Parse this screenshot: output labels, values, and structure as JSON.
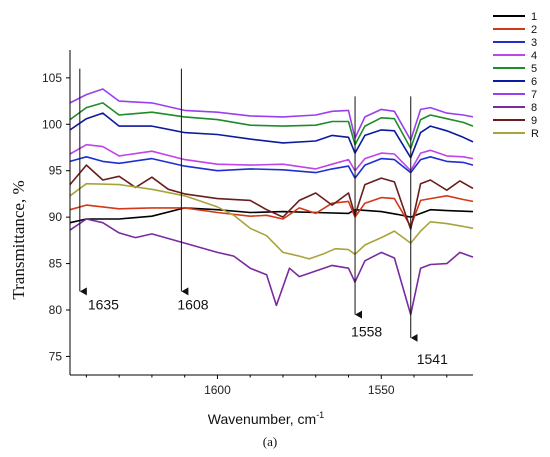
{
  "chart_data": {
    "type": "line",
    "xlabel": "Wavenumber, cm",
    "xlabel_sup": "-1",
    "ylabel": "Transmittance, %",
    "sublabel": "(a)",
    "xlim": [
      1645,
      1522
    ],
    "ylim": [
      73,
      108
    ],
    "x_ticks": [
      1600,
      1550
    ],
    "y_ticks": [
      75,
      80,
      85,
      90,
      95,
      100,
      105
    ],
    "x_reversed": true,
    "legend_position": "top-right",
    "annotations": [
      {
        "label": "1635",
        "x": 1642,
        "y_from": 106,
        "y_to": 82
      },
      {
        "label": "1608",
        "x": 1611,
        "y_from": 106,
        "y_to": 82
      },
      {
        "label": "1558",
        "x": 1558,
        "y_from": 103,
        "y_to": 79.5
      },
      {
        "label": "1541",
        "x": 1541,
        "y_from": 103,
        "y_to": 77
      }
    ],
    "series": [
      {
        "name": "1",
        "color": "#000000",
        "points": [
          [
            1645,
            89.4
          ],
          [
            1640,
            89.8
          ],
          [
            1630,
            89.8
          ],
          [
            1620,
            90.1
          ],
          [
            1610,
            91.0
          ],
          [
            1600,
            90.8
          ],
          [
            1590,
            90.5
          ],
          [
            1580,
            90.6
          ],
          [
            1570,
            90.5
          ],
          [
            1560,
            90.4
          ],
          [
            1558,
            90.8
          ],
          [
            1550,
            90.6
          ],
          [
            1545,
            90.3
          ],
          [
            1541,
            90.0
          ],
          [
            1535,
            90.8
          ],
          [
            1530,
            90.7
          ],
          [
            1522,
            90.6
          ]
        ]
      },
      {
        "name": "2",
        "color": "#d23a17",
        "points": [
          [
            1645,
            90.8
          ],
          [
            1640,
            91.3
          ],
          [
            1630,
            90.9
          ],
          [
            1620,
            91.0
          ],
          [
            1610,
            91.0
          ],
          [
            1600,
            90.5
          ],
          [
            1590,
            90.1
          ],
          [
            1585,
            90.2
          ],
          [
            1580,
            89.8
          ],
          [
            1575,
            91.0
          ],
          [
            1570,
            90.4
          ],
          [
            1565,
            91.5
          ],
          [
            1560,
            91.7
          ],
          [
            1558,
            90.0
          ],
          [
            1555,
            91.5
          ],
          [
            1550,
            92.1
          ],
          [
            1546,
            92.0
          ],
          [
            1541,
            89.0
          ],
          [
            1538,
            91.8
          ],
          [
            1535,
            92.0
          ],
          [
            1530,
            92.3
          ],
          [
            1525,
            91.9
          ],
          [
            1522,
            91.7
          ]
        ]
      },
      {
        "name": "3",
        "color": "#1e2fd0",
        "points": [
          [
            1645,
            96.0
          ],
          [
            1640,
            96.5
          ],
          [
            1635,
            96.0
          ],
          [
            1630,
            95.8
          ],
          [
            1620,
            96.3
          ],
          [
            1610,
            95.5
          ],
          [
            1600,
            95.0
          ],
          [
            1590,
            95.2
          ],
          [
            1580,
            95.1
          ],
          [
            1570,
            94.8
          ],
          [
            1565,
            95.2
          ],
          [
            1560,
            95.5
          ],
          [
            1558,
            94.2
          ],
          [
            1555,
            95.6
          ],
          [
            1550,
            96.3
          ],
          [
            1546,
            96.2
          ],
          [
            1541,
            94.8
          ],
          [
            1538,
            96.2
          ],
          [
            1535,
            96.5
          ],
          [
            1530,
            96.0
          ],
          [
            1525,
            95.9
          ],
          [
            1522,
            95.6
          ]
        ]
      },
      {
        "name": "4",
        "color": "#c044e8",
        "points": [
          [
            1645,
            96.8
          ],
          [
            1640,
            97.8
          ],
          [
            1635,
            97.6
          ],
          [
            1630,
            96.6
          ],
          [
            1620,
            97.1
          ],
          [
            1610,
            96.2
          ],
          [
            1600,
            95.7
          ],
          [
            1590,
            95.6
          ],
          [
            1580,
            95.7
          ],
          [
            1570,
            95.2
          ],
          [
            1565,
            95.7
          ],
          [
            1560,
            96.2
          ],
          [
            1558,
            95.0
          ],
          [
            1555,
            96.3
          ],
          [
            1550,
            96.9
          ],
          [
            1546,
            96.8
          ],
          [
            1541,
            95.0
          ],
          [
            1538,
            96.9
          ],
          [
            1535,
            97.2
          ],
          [
            1530,
            96.6
          ],
          [
            1525,
            96.5
          ],
          [
            1522,
            96.3
          ]
        ]
      },
      {
        "name": "5",
        "color": "#1e8c28",
        "points": [
          [
            1645,
            100.5
          ],
          [
            1640,
            101.8
          ],
          [
            1635,
            102.3
          ],
          [
            1630,
            101.0
          ],
          [
            1620,
            101.3
          ],
          [
            1610,
            100.8
          ],
          [
            1600,
            100.5
          ],
          [
            1590,
            99.9
          ],
          [
            1580,
            99.8
          ],
          [
            1570,
            99.9
          ],
          [
            1565,
            100.3
          ],
          [
            1560,
            100.3
          ],
          [
            1558,
            97.8
          ],
          [
            1555,
            99.8
          ],
          [
            1550,
            100.7
          ],
          [
            1546,
            100.6
          ],
          [
            1541,
            97.4
          ],
          [
            1538,
            100.5
          ],
          [
            1535,
            101.0
          ],
          [
            1530,
            100.6
          ],
          [
            1525,
            100.2
          ],
          [
            1522,
            99.8
          ]
        ]
      },
      {
        "name": "6",
        "color": "#0c1a9e",
        "points": [
          [
            1645,
            99.4
          ],
          [
            1640,
            100.6
          ],
          [
            1635,
            101.2
          ],
          [
            1630,
            99.8
          ],
          [
            1620,
            99.8
          ],
          [
            1610,
            99.1
          ],
          [
            1600,
            98.9
          ],
          [
            1590,
            98.4
          ],
          [
            1580,
            98.0
          ],
          [
            1570,
            98.2
          ],
          [
            1565,
            98.8
          ],
          [
            1560,
            98.6
          ],
          [
            1558,
            96.9
          ],
          [
            1555,
            98.8
          ],
          [
            1550,
            99.4
          ],
          [
            1546,
            99.3
          ],
          [
            1541,
            96.4
          ],
          [
            1538,
            99.1
          ],
          [
            1535,
            99.8
          ],
          [
            1530,
            99.3
          ],
          [
            1525,
            98.6
          ],
          [
            1522,
            98.1
          ]
        ]
      },
      {
        "name": "7",
        "color": "#9a3ff0",
        "points": [
          [
            1645,
            102.3
          ],
          [
            1640,
            103.2
          ],
          [
            1635,
            103.8
          ],
          [
            1630,
            102.5
          ],
          [
            1620,
            102.3
          ],
          [
            1610,
            101.5
          ],
          [
            1600,
            101.3
          ],
          [
            1590,
            100.9
          ],
          [
            1580,
            100.8
          ],
          [
            1570,
            101.0
          ],
          [
            1565,
            101.4
          ],
          [
            1560,
            101.5
          ],
          [
            1558,
            98.5
          ],
          [
            1555,
            100.8
          ],
          [
            1550,
            101.6
          ],
          [
            1546,
            101.4
          ],
          [
            1541,
            98.3
          ],
          [
            1538,
            101.6
          ],
          [
            1535,
            101.8
          ],
          [
            1530,
            101.2
          ],
          [
            1525,
            101.0
          ],
          [
            1522,
            100.8
          ]
        ]
      },
      {
        "name": "8",
        "color": "#7a2ba0",
        "points": [
          [
            1645,
            88.6
          ],
          [
            1640,
            89.8
          ],
          [
            1635,
            89.4
          ],
          [
            1630,
            88.3
          ],
          [
            1625,
            87.8
          ],
          [
            1620,
            88.2
          ],
          [
            1610,
            87.2
          ],
          [
            1600,
            86.2
          ],
          [
            1595,
            85.8
          ],
          [
            1590,
            84.5
          ],
          [
            1585,
            83.8
          ],
          [
            1582,
            80.5
          ],
          [
            1578,
            84.5
          ],
          [
            1575,
            83.6
          ],
          [
            1570,
            84.2
          ],
          [
            1565,
            84.8
          ],
          [
            1560,
            84.5
          ],
          [
            1558,
            83.0
          ],
          [
            1555,
            85.3
          ],
          [
            1550,
            86.2
          ],
          [
            1546,
            85.6
          ],
          [
            1541,
            79.5
          ],
          [
            1538,
            84.5
          ],
          [
            1535,
            84.9
          ],
          [
            1530,
            85.0
          ],
          [
            1526,
            86.2
          ],
          [
            1522,
            85.7
          ]
        ]
      },
      {
        "name": "9",
        "color": "#6b1d1d",
        "points": [
          [
            1645,
            93.5
          ],
          [
            1640,
            95.6
          ],
          [
            1635,
            94.0
          ],
          [
            1630,
            94.4
          ],
          [
            1625,
            93.2
          ],
          [
            1620,
            94.3
          ],
          [
            1615,
            93.0
          ],
          [
            1610,
            92.5
          ],
          [
            1600,
            92.0
          ],
          [
            1590,
            91.8
          ],
          [
            1585,
            90.8
          ],
          [
            1580,
            90.0
          ],
          [
            1575,
            91.8
          ],
          [
            1570,
            92.6
          ],
          [
            1565,
            91.3
          ],
          [
            1560,
            92.6
          ],
          [
            1558,
            90.2
          ],
          [
            1555,
            93.5
          ],
          [
            1550,
            94.2
          ],
          [
            1546,
            93.8
          ],
          [
            1541,
            88.7
          ],
          [
            1538,
            93.6
          ],
          [
            1535,
            94.0
          ],
          [
            1530,
            92.9
          ],
          [
            1526,
            93.9
          ],
          [
            1522,
            93.1
          ]
        ]
      },
      {
        "name": "R",
        "color": "#a8a43a",
        "points": [
          [
            1645,
            92.3
          ],
          [
            1640,
            93.6
          ],
          [
            1630,
            93.5
          ],
          [
            1620,
            93.0
          ],
          [
            1610,
            92.3
          ],
          [
            1600,
            91.1
          ],
          [
            1595,
            90.2
          ],
          [
            1590,
            88.8
          ],
          [
            1585,
            88.0
          ],
          [
            1580,
            86.2
          ],
          [
            1575,
            85.8
          ],
          [
            1572,
            85.5
          ],
          [
            1568,
            86.0
          ],
          [
            1564,
            86.6
          ],
          [
            1560,
            86.5
          ],
          [
            1558,
            86.0
          ],
          [
            1555,
            87.0
          ],
          [
            1550,
            87.8
          ],
          [
            1546,
            88.5
          ],
          [
            1541,
            87.2
          ],
          [
            1538,
            88.5
          ],
          [
            1535,
            89.5
          ],
          [
            1530,
            89.3
          ],
          [
            1525,
            89.0
          ],
          [
            1522,
            88.8
          ]
        ]
      }
    ]
  }
}
